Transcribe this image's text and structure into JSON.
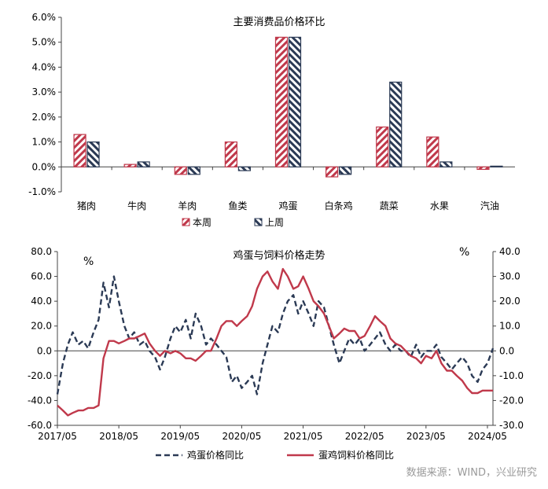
{
  "chart_data": [
    {
      "type": "bar",
      "title": "主要消费品价格环比",
      "categories": [
        "猪肉",
        "牛肉",
        "羊肉",
        "鱼类",
        "鸡蛋",
        "白条鸡",
        "蔬菜",
        "水果",
        "汽油"
      ],
      "series": [
        {
          "name": "本周",
          "values": [
            1.3,
            0.1,
            -0.3,
            1.0,
            5.2,
            -0.4,
            1.6,
            1.2,
            -0.1
          ],
          "color": "#c0394b",
          "pattern": "hatch-red"
        },
        {
          "name": "上周",
          "values": [
            1.0,
            0.2,
            -0.3,
            -0.15,
            5.2,
            -0.3,
            3.4,
            0.2,
            0.03
          ],
          "color": "#2b3a55",
          "pattern": "hatch-navy"
        }
      ],
      "ylim": [
        -1.0,
        6.0
      ],
      "yticks": [
        "-1.0%",
        "0.0%",
        "1.0%",
        "2.0%",
        "3.0%",
        "4.0%",
        "5.0%",
        "6.0%"
      ],
      "ytick_values": [
        -1,
        0,
        1,
        2,
        3,
        4,
        5,
        6
      ],
      "legend_placement": "bottom-center",
      "grid": false
    },
    {
      "type": "line",
      "title": "鸡蛋与饲料价格走势",
      "left_unit": "%",
      "right_unit": "%",
      "x_tick_labels": [
        "2017/05",
        "2018/05",
        "2019/05",
        "2020/05",
        "2021/05",
        "2022/05",
        "2023/05",
        "2024/05"
      ],
      "ylim_left": [
        -60,
        80
      ],
      "yticks_left": [
        "-60.0",
        "-40.0",
        "-20.0",
        "0.0",
        "20.0",
        "40.0",
        "60.0",
        "80.0"
      ],
      "ytick_values_left": [
        -60,
        -40,
        -20,
        0,
        20,
        40,
        60,
        80
      ],
      "ylim_right": [
        -30,
        40
      ],
      "yticks_right": [
        "-30.0",
        "-20.0",
        "-10.0",
        "0.0",
        "10.0",
        "20.0",
        "30.0",
        "40.0"
      ],
      "ytick_values_right": [
        -30,
        -20,
        -10,
        0,
        10,
        20,
        30,
        40
      ],
      "x_range": [
        2017.33,
        2024.42
      ],
      "series": [
        {
          "name": "鸡蛋价格同比",
          "axis": "left",
          "color": "#2b3a55",
          "style": "dashed",
          "x": [
            2017.33,
            2017.42,
            2017.5,
            2017.58,
            2017.67,
            2017.75,
            2017.83,
            2017.92,
            2018.0,
            2018.08,
            2018.17,
            2018.25,
            2018.33,
            2018.42,
            2018.5,
            2018.58,
            2018.67,
            2018.75,
            2018.83,
            2018.92,
            2019.0,
            2019.08,
            2019.17,
            2019.25,
            2019.33,
            2019.42,
            2019.5,
            2019.58,
            2019.67,
            2019.75,
            2019.83,
            2019.92,
            2020.0,
            2020.08,
            2020.17,
            2020.25,
            2020.33,
            2020.42,
            2020.5,
            2020.58,
            2020.67,
            2020.75,
            2020.83,
            2020.92,
            2021.0,
            2021.08,
            2021.17,
            2021.25,
            2021.33,
            2021.42,
            2021.5,
            2021.58,
            2021.67,
            2021.75,
            2021.83,
            2021.92,
            2022.0,
            2022.08,
            2022.17,
            2022.25,
            2022.33,
            2022.42,
            2022.5,
            2022.58,
            2022.67,
            2022.75,
            2022.83,
            2022.92,
            2023.0,
            2023.08,
            2023.17,
            2023.25,
            2023.33,
            2023.42,
            2023.5,
            2023.58,
            2023.67,
            2023.75,
            2023.83,
            2023.92,
            2024.0,
            2024.08,
            2024.17,
            2024.25,
            2024.33,
            2024.42
          ],
          "values": [
            -35,
            -10,
            5,
            15,
            5,
            8,
            2,
            15,
            25,
            55,
            35,
            60,
            40,
            20,
            10,
            15,
            5,
            8,
            0,
            -5,
            -15,
            -5,
            10,
            20,
            15,
            25,
            10,
            30,
            20,
            5,
            10,
            5,
            0,
            -5,
            -25,
            -20,
            -30,
            -25,
            -20,
            -35,
            -10,
            5,
            20,
            15,
            30,
            40,
            45,
            30,
            40,
            30,
            20,
            40,
            35,
            20,
            5,
            -10,
            0,
            10,
            5,
            10,
            0,
            5,
            10,
            15,
            5,
            0,
            5,
            0,
            0,
            -5,
            5,
            -5,
            0,
            0,
            5,
            -5,
            -10,
            -15,
            -10,
            -5,
            -10,
            -20,
            -25,
            -15,
            -10,
            2
          ]
        },
        {
          "name": "蛋鸡饲料价格同比",
          "axis": "right",
          "color": "#c0394b",
          "style": "solid",
          "x": [
            2017.33,
            2017.42,
            2017.5,
            2017.58,
            2017.67,
            2017.75,
            2017.83,
            2017.92,
            2018.0,
            2018.08,
            2018.17,
            2018.25,
            2018.33,
            2018.42,
            2018.5,
            2018.58,
            2018.67,
            2018.75,
            2018.83,
            2018.92,
            2019.0,
            2019.08,
            2019.17,
            2019.25,
            2019.33,
            2019.42,
            2019.5,
            2019.58,
            2019.67,
            2019.75,
            2019.83,
            2019.92,
            2020.0,
            2020.08,
            2020.17,
            2020.25,
            2020.33,
            2020.42,
            2020.5,
            2020.58,
            2020.67,
            2020.75,
            2020.83,
            2020.92,
            2021.0,
            2021.08,
            2021.17,
            2021.25,
            2021.33,
            2021.42,
            2021.5,
            2021.58,
            2021.67,
            2021.75,
            2021.83,
            2021.92,
            2022.0,
            2022.08,
            2022.17,
            2022.25,
            2022.33,
            2022.42,
            2022.5,
            2022.58,
            2022.67,
            2022.75,
            2022.83,
            2022.92,
            2023.0,
            2023.08,
            2023.17,
            2023.25,
            2023.33,
            2023.42,
            2023.5,
            2023.58,
            2023.67,
            2023.75,
            2023.83,
            2023.92,
            2024.0,
            2024.08,
            2024.17,
            2024.25,
            2024.33,
            2024.42
          ],
          "values": [
            -22,
            -24,
            -26,
            -25,
            -24,
            -24,
            -23,
            -23,
            -22,
            -3,
            4,
            4,
            3,
            4,
            5,
            5,
            6,
            7,
            3,
            0,
            -2,
            0,
            -1,
            0,
            -1,
            -3,
            -3,
            -4,
            -2,
            0,
            0,
            5,
            10,
            12,
            12,
            10,
            12,
            14,
            18,
            25,
            30,
            32,
            28,
            25,
            33,
            30,
            25,
            26,
            30,
            25,
            20,
            18,
            15,
            10,
            5,
            7,
            9,
            8,
            8,
            5,
            6,
            10,
            14,
            12,
            10,
            5,
            3,
            2,
            0,
            -2,
            -3,
            -5,
            -2,
            -3,
            0,
            -5,
            -8,
            -8,
            -10,
            -12,
            -15,
            -17,
            -17,
            -16,
            -16,
            -16
          ]
        }
      ],
      "legend_placement": "bottom-center",
      "grid": false
    }
  ],
  "source_text": "数据来源：WIND，兴业研究"
}
